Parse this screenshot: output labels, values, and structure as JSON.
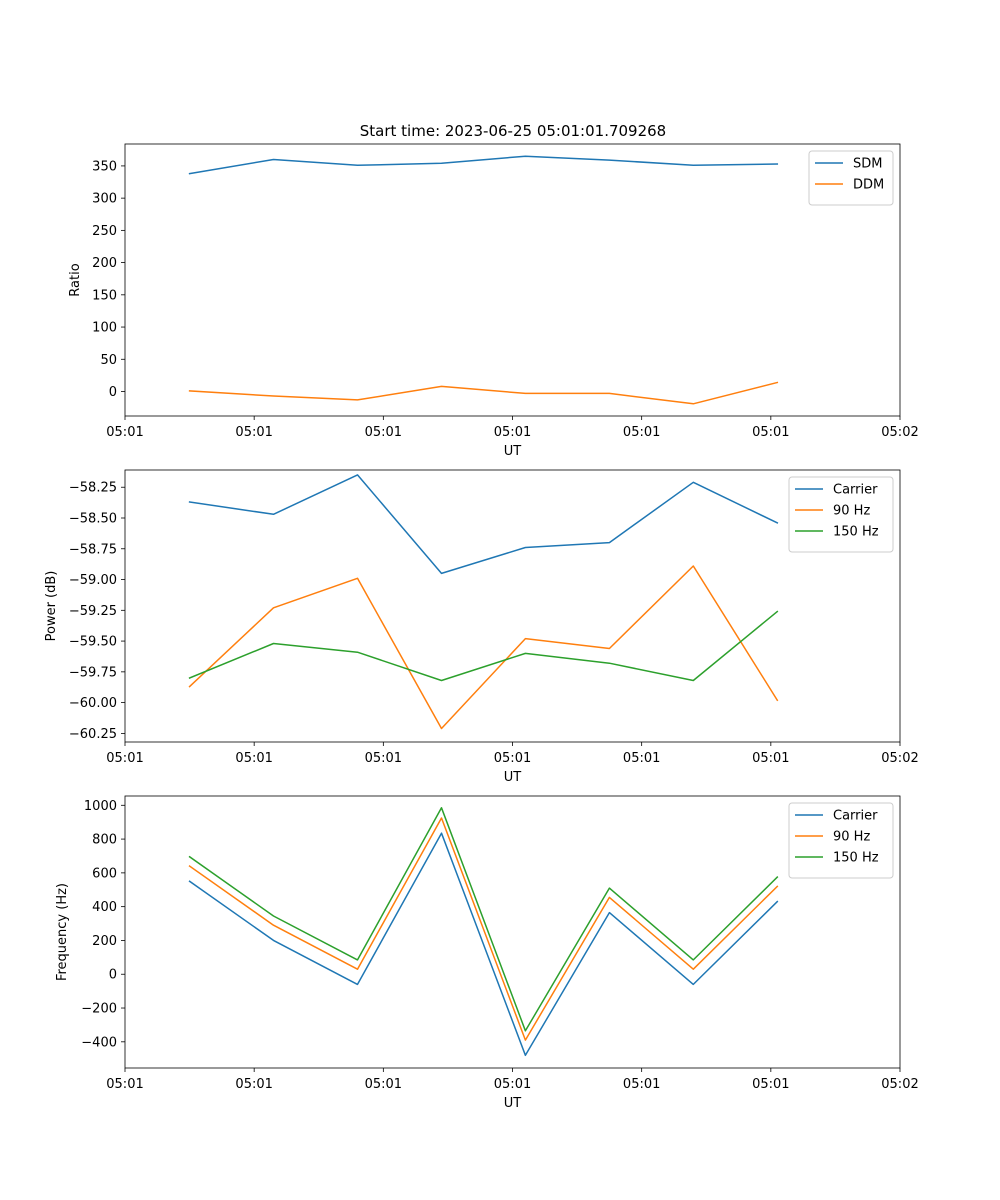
{
  "figure": {
    "title": "Start time: 2023-06-25 05:01:01.709268"
  },
  "chart_data": [
    {
      "type": "line",
      "title": "Start time: 2023-06-25 05:01:01.709268",
      "xlabel": "UT",
      "ylabel": "Ratio",
      "x_tick_labels": [
        "05:01",
        "05:01",
        "05:01",
        "05:01",
        "05:01",
        "05:01",
        "05:02"
      ],
      "xlim": [
        0,
        6
      ],
      "x": [
        0.5,
        1.15,
        1.8,
        2.45,
        3.1,
        3.75,
        4.4,
        5.05
      ],
      "ylim": [
        -38,
        384
      ],
      "y_ticks": [
        0,
        50,
        100,
        150,
        200,
        250,
        300,
        350
      ],
      "y_tick_labels": [
        "0",
        "50",
        "100",
        "150",
        "200",
        "250",
        "300",
        "350"
      ],
      "legend": "upper-right",
      "grid": false,
      "series": [
        {
          "name": "SDM",
          "color": "#1f77b4",
          "values": [
            338,
            360,
            351,
            354,
            365,
            359,
            351,
            353
          ]
        },
        {
          "name": "DDM",
          "color": "#ff7f0e",
          "values": [
            1,
            -7,
            -13,
            8,
            -3,
            -3,
            -19,
            14
          ]
        }
      ]
    },
    {
      "type": "line",
      "xlabel": "UT",
      "ylabel": "Power (dB)",
      "x_tick_labels": [
        "05:01",
        "05:01",
        "05:01",
        "05:01",
        "05:01",
        "05:01",
        "05:02"
      ],
      "xlim": [
        0,
        6
      ],
      "x": [
        0.5,
        1.15,
        1.8,
        2.45,
        3.1,
        3.75,
        4.4,
        5.05
      ],
      "ylim": [
        -60.32,
        -58.11
      ],
      "y_ticks": [
        -60.25,
        -60.0,
        -59.75,
        -59.5,
        -59.25,
        -59.0,
        -58.75,
        -58.5,
        -58.25
      ],
      "y_tick_labels": [
        "−60.25",
        "−60.00",
        "−59.75",
        "−59.50",
        "−59.25",
        "−59.00",
        "−58.75",
        "−58.50",
        "−58.25"
      ],
      "legend": "upper-right",
      "grid": false,
      "series": [
        {
          "name": "Carrier",
          "color": "#1f77b4",
          "values": [
            -58.37,
            -58.47,
            -58.15,
            -58.95,
            -58.74,
            -58.7,
            -58.21,
            -58.54
          ]
        },
        {
          "name": "90 Hz",
          "color": "#ff7f0e",
          "values": [
            -59.87,
            -59.23,
            -58.99,
            -60.21,
            -59.48,
            -59.56,
            -58.89,
            -59.98
          ]
        },
        {
          "name": "150 Hz",
          "color": "#2ca02c",
          "values": [
            -59.8,
            -59.52,
            -59.59,
            -59.82,
            -59.6,
            -59.68,
            -59.82,
            -59.26
          ]
        }
      ]
    },
    {
      "type": "line",
      "xlabel": "UT",
      "ylabel": "Frequency (Hz)",
      "x_tick_labels": [
        "05:01",
        "05:01",
        "05:01",
        "05:01",
        "05:01",
        "05:01",
        "05:02"
      ],
      "xlim": [
        0,
        6
      ],
      "x": [
        0.5,
        1.15,
        1.8,
        2.45,
        3.1,
        3.75,
        4.4,
        5.05
      ],
      "ylim": [
        -555,
        1055
      ],
      "y_ticks": [
        -400,
        -200,
        0,
        200,
        400,
        600,
        800,
        1000
      ],
      "y_tick_labels": [
        "−400",
        "−200",
        "0",
        "200",
        "400",
        "600",
        "800",
        "1000"
      ],
      "legend": "upper-right",
      "grid": false,
      "series": [
        {
          "name": "Carrier",
          "color": "#1f77b4",
          "values": [
            550,
            200,
            -60,
            835,
            -480,
            365,
            -60,
            430
          ]
        },
        {
          "name": "90 Hz",
          "color": "#ff7f0e",
          "values": [
            640,
            290,
            30,
            925,
            -390,
            455,
            30,
            520
          ]
        },
        {
          "name": "150 Hz",
          "color": "#2ca02c",
          "values": [
            695,
            345,
            85,
            985,
            -335,
            510,
            85,
            575
          ]
        }
      ]
    }
  ]
}
